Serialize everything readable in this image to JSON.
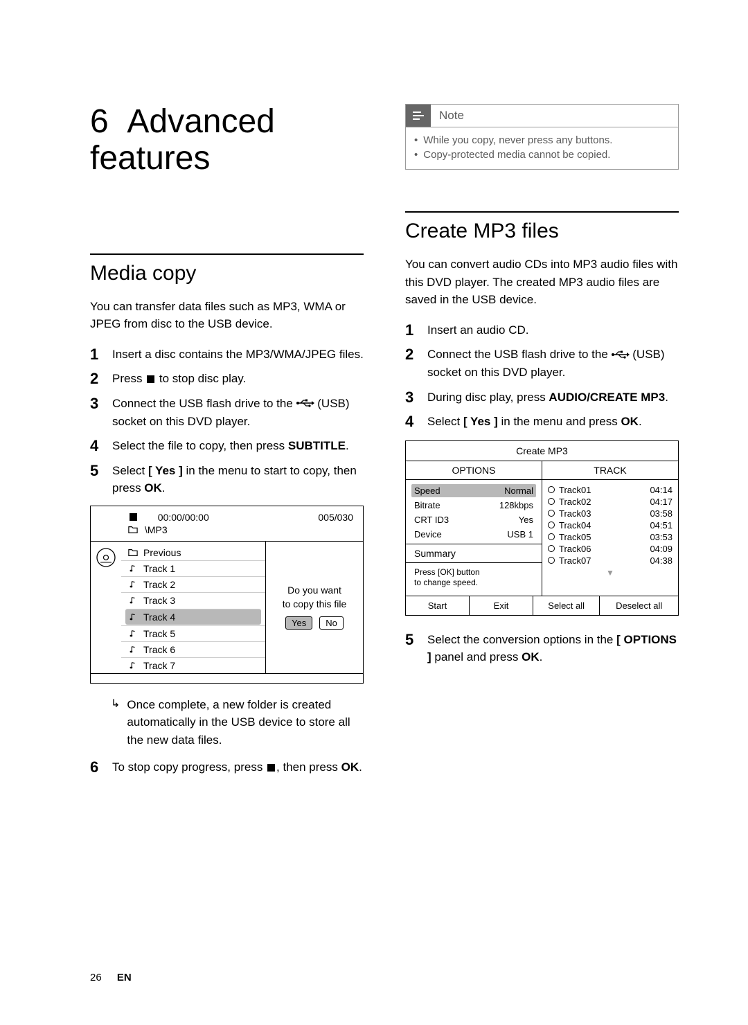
{
  "chapter": {
    "number": "6",
    "title": "Advanced features"
  },
  "pageFooter": {
    "num": "26",
    "lang": "EN"
  },
  "left": {
    "section": "Media copy",
    "intro": "You can transfer data files such as MP3, WMA or JPEG from disc to the USB device.",
    "steps": {
      "s1": "Insert a disc contains the MP3/WMA/JPEG files.",
      "s2a": "Press ",
      "s2b": " to stop disc play.",
      "s3a": "Connect the USB flash drive to the ",
      "s3b": " (USB) socket on this DVD player.",
      "s4a": "Select the file to copy, then press ",
      "s4b": "SUBTITLE",
      "s4c": ".",
      "s5a": "Select ",
      "s5b": "[ Yes ]",
      "s5c": " in the menu to start to copy, then press ",
      "s5d": "OK",
      "s5e": ".",
      "sub": "Once complete, a new folder is created automatically in the USB device to store all the new data files.",
      "s6a": "To stop copy progress, press ",
      "s6b": ", then press ",
      "s6c": "OK",
      "s6d": "."
    },
    "screen": {
      "time": "00:00/00:00",
      "folder": "\\MP3",
      "counter": "005/030",
      "items": [
        "Previous",
        "Track 1",
        "Track 2",
        "Track 3",
        "Track 4",
        "Track 5",
        "Track 6",
        "Track 7"
      ],
      "selectedIndex": 4,
      "promptLine1": "Do you want",
      "promptLine2": "to copy this file",
      "yes": "Yes",
      "no": "No"
    }
  },
  "right": {
    "note": {
      "label": "Note",
      "items": [
        "While you copy, never press any buttons.",
        "Copy-protected media cannot be copied."
      ]
    },
    "section": "Create MP3 files",
    "intro": "You can convert audio CDs into MP3 audio files with this DVD player. The created MP3 audio files are saved in the USB device.",
    "steps": {
      "s1": "Insert an audio CD.",
      "s2a": "Connect the USB flash drive to the ",
      "s2b": " (USB) socket on this DVD player.",
      "s3a": "During disc play, press ",
      "s3b": "AUDIO/CREATE MP3",
      "s3c": ".",
      "s4a": "Select ",
      "s4b": "[ Yes ]",
      "s4c": " in the menu and press ",
      "s4d": "OK",
      "s4e": ".",
      "s5a": "Select the conversion options in the ",
      "s5b": "[ OPTIONS ]",
      "s5c": " panel and press ",
      "s5d": "OK",
      "s5e": "."
    },
    "screen": {
      "title": "Create MP3",
      "headOptions": "OPTIONS",
      "headTrack": "TRACK",
      "options": [
        {
          "label": "Speed",
          "value": "Normal",
          "selected": true
        },
        {
          "label": "Bitrate",
          "value": "128kbps"
        },
        {
          "label": "CRT ID3",
          "value": "Yes"
        },
        {
          "label": "Device",
          "value": "USB 1"
        }
      ],
      "summary": "Summary",
      "hint1": "Press [OK] button",
      "hint2": "to change speed.",
      "tracks": [
        {
          "name": "Track01",
          "time": "04:14"
        },
        {
          "name": "Track02",
          "time": "04:17"
        },
        {
          "name": "Track03",
          "time": "03:58"
        },
        {
          "name": "Track04",
          "time": "04:51"
        },
        {
          "name": "Track05",
          "time": "03:53"
        },
        {
          "name": "Track06",
          "time": "04:09"
        },
        {
          "name": "Track07",
          "time": "04:38"
        }
      ],
      "footer": {
        "start": "Start",
        "exit": "Exit",
        "selectAll": "Select all",
        "deselectAll": "Deselect all"
      }
    }
  }
}
